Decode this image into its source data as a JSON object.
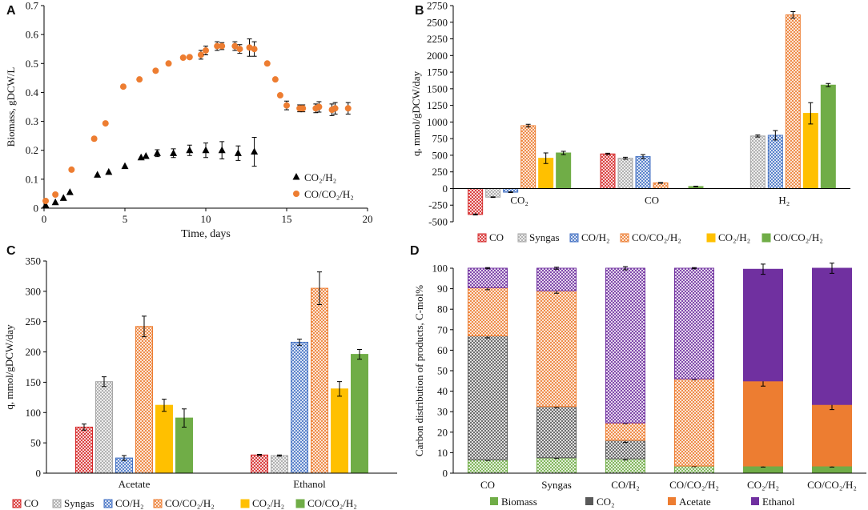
{
  "colors": {
    "CO": "#d62728",
    "Syngas": "#a6a6a6",
    "CO/H₂": "#4472c4",
    "CO/CO₂/H₂": "#ed7d31",
    "CO₂/H₂": "#ffc000",
    "CO/CO₂/H₂ solid": "#70ad47",
    "Biomass": "#70ad47",
    "CO₂": "#595959",
    "Acetate": "#ed7d31",
    "Ethanol": "#7030a0",
    "scatter_orange": "#ed7d31",
    "scatter_black": "#000000"
  },
  "chart_data": [
    {
      "panel": "A",
      "type": "scatter",
      "title": "",
      "xlabel": "Time, days",
      "ylabel": "Biomass, gDCW/L",
      "xlim": [
        0,
        20
      ],
      "ylim": [
        0,
        0.7
      ],
      "xticks": [
        0,
        5,
        10,
        15,
        20
      ],
      "yticks": [
        0,
        0.1,
        0.2,
        0.3,
        0.4,
        0.5,
        0.6,
        0.7
      ],
      "legend_position": "bottom-right",
      "series": [
        {
          "name": "CO₂/H₂",
          "marker": "triangle",
          "color": "#000000",
          "points": [
            {
              "x": 0.1,
              "y": 0.01,
              "err": 0
            },
            {
              "x": 0.7,
              "y": 0.02,
              "err": 0
            },
            {
              "x": 1.2,
              "y": 0.035,
              "err": 0
            },
            {
              "x": 1.6,
              "y": 0.055,
              "err": 0
            },
            {
              "x": 3.3,
              "y": 0.115,
              "err": 0
            },
            {
              "x": 4.0,
              "y": 0.125,
              "err": 0
            },
            {
              "x": 5.0,
              "y": 0.145,
              "err": 0
            },
            {
              "x": 6.0,
              "y": 0.175,
              "err": 0
            },
            {
              "x": 6.3,
              "y": 0.18,
              "err": 0
            },
            {
              "x": 7.0,
              "y": 0.19,
              "err": 0.012
            },
            {
              "x": 8.0,
              "y": 0.19,
              "err": 0.015
            },
            {
              "x": 9.0,
              "y": 0.2,
              "err": 0.018
            },
            {
              "x": 10.0,
              "y": 0.2,
              "err": 0.025
            },
            {
              "x": 11.0,
              "y": 0.2,
              "err": 0.03
            },
            {
              "x": 12.0,
              "y": 0.19,
              "err": 0.025
            },
            {
              "x": 13.0,
              "y": 0.195,
              "err": 0.05
            }
          ]
        },
        {
          "name": "CO/CO₂/H₂",
          "marker": "circle",
          "color": "#ed7d31",
          "points": [
            {
              "x": 0.1,
              "y": 0.025,
              "err": 0
            },
            {
              "x": 0.7,
              "y": 0.047,
              "err": 0
            },
            {
              "x": 1.7,
              "y": 0.133,
              "err": 0
            },
            {
              "x": 3.1,
              "y": 0.24,
              "err": 0
            },
            {
              "x": 3.8,
              "y": 0.293,
              "err": 0
            },
            {
              "x": 4.9,
              "y": 0.42,
              "err": 0
            },
            {
              "x": 5.9,
              "y": 0.445,
              "err": 0
            },
            {
              "x": 6.9,
              "y": 0.475,
              "err": 0
            },
            {
              "x": 7.7,
              "y": 0.5,
              "err": 0
            },
            {
              "x": 8.6,
              "y": 0.52,
              "err": 0
            },
            {
              "x": 9.0,
              "y": 0.522,
              "err": 0
            },
            {
              "x": 9.7,
              "y": 0.53,
              "err": 0.015
            },
            {
              "x": 10.0,
              "y": 0.545,
              "err": 0.015
            },
            {
              "x": 10.7,
              "y": 0.56,
              "err": 0.015
            },
            {
              "x": 11.0,
              "y": 0.56,
              "err": 0.012
            },
            {
              "x": 11.8,
              "y": 0.56,
              "err": 0.015
            },
            {
              "x": 12.1,
              "y": 0.55,
              "err": 0.015
            },
            {
              "x": 12.7,
              "y": 0.555,
              "err": 0.03
            },
            {
              "x": 13.0,
              "y": 0.55,
              "err": 0.025
            },
            {
              "x": 13.8,
              "y": 0.5,
              "err": 0
            },
            {
              "x": 14.3,
              "y": 0.445,
              "err": 0
            },
            {
              "x": 14.6,
              "y": 0.39,
              "err": 0
            },
            {
              "x": 15.0,
              "y": 0.355,
              "err": 0.015
            },
            {
              "x": 15.8,
              "y": 0.345,
              "err": 0.012
            },
            {
              "x": 16.0,
              "y": 0.345,
              "err": 0.012
            },
            {
              "x": 16.8,
              "y": 0.345,
              "err": 0.015
            },
            {
              "x": 17.0,
              "y": 0.35,
              "err": 0.018
            },
            {
              "x": 17.8,
              "y": 0.34,
              "err": 0.02
            },
            {
              "x": 18.0,
              "y": 0.345,
              "err": 0.02
            },
            {
              "x": 18.8,
              "y": 0.345,
              "err": 0.02
            }
          ]
        }
      ]
    },
    {
      "panel": "B",
      "type": "bar",
      "title": "",
      "xlabel": "",
      "ylabel": "q, mmol/gDCW/day",
      "ylim": [
        -500,
        2750
      ],
      "yticks": [
        -500,
        -250,
        0,
        250,
        500,
        750,
        1000,
        1250,
        1500,
        1750,
        2000,
        2250,
        2500,
        2750
      ],
      "categories": [
        "CO₂",
        "CO",
        "H₂"
      ],
      "series": [
        {
          "name": "CO",
          "color": "#d62728",
          "pattern": "hatch",
          "values": [
            -390,
            520,
            null
          ],
          "errors": [
            8,
            10,
            null
          ]
        },
        {
          "name": "Syngas",
          "color": "#a6a6a6",
          "pattern": "hatch",
          "values": [
            -130,
            455,
            790
          ],
          "errors": [
            5,
            15,
            15
          ]
        },
        {
          "name": "CO/H₂",
          "color": "#4472c4",
          "pattern": "hatch",
          "values": [
            -55,
            480,
            800
          ],
          "errors": [
            5,
            30,
            70
          ]
        },
        {
          "name": "CO/CO₂/H₂",
          "color": "#ed7d31",
          "pattern": "hatch",
          "values": [
            945,
            85,
            2610
          ],
          "errors": [
            20,
            5,
            50
          ]
        },
        {
          "name": "CO₂/H₂",
          "color": "#ffc000",
          "pattern": "solid",
          "values": [
            455,
            null,
            1130
          ],
          "errors": [
            80,
            null,
            160
          ]
        },
        {
          "name": "CO/CO₂/H₂",
          "color": "#70ad47",
          "pattern": "solid",
          "values": [
            535,
            30,
            1555
          ],
          "errors": [
            25,
            5,
            25
          ]
        }
      ]
    },
    {
      "panel": "C",
      "type": "bar",
      "title": "",
      "xlabel": "",
      "ylabel": "q, mmol/gDCW/day",
      "ylim": [
        0,
        350
      ],
      "yticks": [
        0,
        50,
        100,
        150,
        200,
        250,
        300,
        350
      ],
      "categories": [
        "Acetate",
        "Ethanol"
      ],
      "series": [
        {
          "name": "CO",
          "color": "#d62728",
          "pattern": "hatch",
          "values": [
            76,
            30
          ],
          "errors": [
            5,
            1
          ]
        },
        {
          "name": "Syngas",
          "color": "#a6a6a6",
          "pattern": "hatch",
          "values": [
            151,
            29
          ],
          "errors": [
            8,
            1
          ]
        },
        {
          "name": "CO/H₂",
          "color": "#4472c4",
          "pattern": "hatch",
          "values": [
            25,
            216
          ],
          "errors": [
            4,
            5
          ]
        },
        {
          "name": "CO/CO₂/H₂",
          "color": "#ed7d31",
          "pattern": "hatch",
          "values": [
            242,
            305
          ],
          "errors": [
            17,
            27
          ]
        },
        {
          "name": "CO₂/H₂",
          "color": "#ffc000",
          "pattern": "solid",
          "values": [
            112,
            139
          ],
          "errors": [
            10,
            12
          ]
        },
        {
          "name": "CO/CO₂/H₂",
          "color": "#70ad47",
          "pattern": "solid",
          "values": [
            91,
            196
          ],
          "errors": [
            15,
            8
          ]
        }
      ]
    },
    {
      "panel": "D",
      "type": "bar",
      "stacked": true,
      "title": "",
      "xlabel": "",
      "ylabel": "Carbon distribution of products, C-mol%",
      "ylim": [
        0,
        100
      ],
      "yticks": [
        0,
        10,
        20,
        30,
        40,
        50,
        60,
        70,
        80,
        90,
        100
      ],
      "categories": [
        "CO",
        "Syngas",
        "CO/H₂",
        "CO/CO₂/H₂",
        "CO₂/H₂",
        "CO/CO₂/H₂"
      ],
      "category_patterns": [
        "hatch",
        "hatch",
        "hatch",
        "hatch",
        "solid",
        "solid"
      ],
      "series": [
        {
          "name": "Biomass",
          "color": "#70ad47",
          "values": [
            6.5,
            7.5,
            7.0,
            3.5,
            3.5,
            3.5
          ],
          "errors": [
            0.3,
            0.3,
            0.5,
            0.3,
            0.5,
            0.5
          ]
        },
        {
          "name": "CO₂",
          "color": "#595959",
          "values": [
            60.5,
            25,
            9,
            0,
            0,
            0
          ],
          "errors": [
            1,
            0.5,
            1,
            0,
            0,
            0
          ]
        },
        {
          "name": "Acetate",
          "color": "#ed7d31",
          "values": [
            23.5,
            56.5,
            8.5,
            42.5,
            41.5,
            30
          ],
          "errors": [
            1,
            1.2,
            0.3,
            0.3,
            2.5,
            2.5
          ]
        },
        {
          "name": "Ethanol",
          "color": "#7030a0",
          "values": [
            9.5,
            11,
            75.5,
            54,
            54.5,
            66.5
          ],
          "errors": [
            0.3,
            0.5,
            0.8,
            0.3,
            2.5,
            2.5
          ]
        }
      ]
    }
  ]
}
